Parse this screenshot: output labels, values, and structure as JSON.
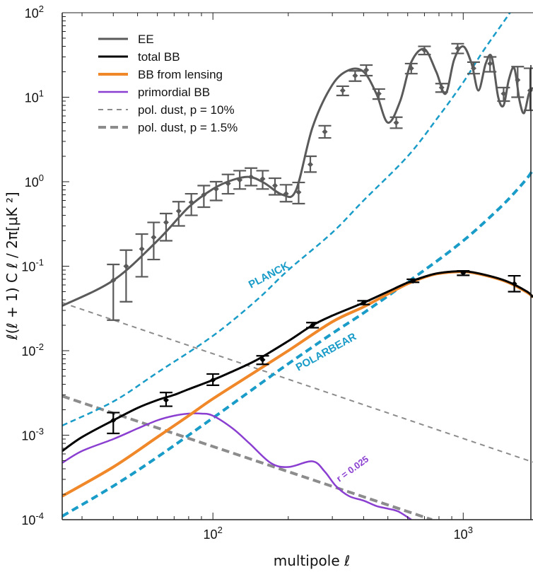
{
  "chart_data": {
    "type": "line",
    "xlabel": "multipole ℓ",
    "ylabel": "ℓ(ℓ + 1) C ℓ / 2π[μK ²]",
    "x_scale": "log",
    "y_scale": "log",
    "xlim": [
      25,
      1900
    ],
    "ylim": [
      0.0001,
      100
    ],
    "grid": false,
    "legend_position": "top-left",
    "x_ticks": [
      {
        "value": 100,
        "base": "10",
        "exp": "2"
      },
      {
        "value": 1000,
        "base": "10",
        "exp": "3"
      }
    ],
    "y_ticks": [
      {
        "value": 100,
        "base": "10",
        "exp": "2"
      },
      {
        "value": 10,
        "base": "10",
        "exp": "1"
      },
      {
        "value": 1,
        "base": "10",
        "exp": "0"
      },
      {
        "value": 0.1,
        "base": "10",
        "exp": "-1"
      },
      {
        "value": 0.01,
        "base": "10",
        "exp": "-2"
      },
      {
        "value": 0.001,
        "base": "10",
        "exp": "-3"
      },
      {
        "value": 0.0001,
        "base": "10",
        "exp": "-4"
      }
    ],
    "series": [
      {
        "name": "EE",
        "color": "#5a5a5a",
        "style": "solid",
        "width": 3,
        "x": [
          25,
          40,
          60,
          80,
          100,
          120,
          140,
          160,
          190,
          215,
          250,
          300,
          350,
          400,
          450,
          500,
          560,
          620,
          700,
          780,
          850,
          920,
          1000,
          1080,
          1150,
          1230,
          1300,
          1380,
          1450,
          1520,
          1600,
          1680,
          1750,
          1830,
          1900
        ],
        "y": [
          0.034,
          0.068,
          0.2,
          0.5,
          0.82,
          1.05,
          1.14,
          0.97,
          0.7,
          0.8,
          4.4,
          14,
          21,
          20,
          11,
          5,
          9,
          26,
          37,
          20,
          11,
          28,
          40,
          25,
          12,
          25,
          30,
          10,
          8,
          16,
          22,
          9,
          6.5,
          11,
          13
        ]
      },
      {
        "name": "total BB",
        "color": "#000000",
        "style": "solid",
        "width": 3,
        "x": [
          25,
          30,
          40,
          50,
          60,
          70,
          80,
          100,
          120,
          150,
          200,
          250,
          300,
          400,
          500,
          600,
          700,
          800,
          1000,
          1200,
          1500,
          1800,
          1900
        ],
        "y": [
          0.00065,
          0.00095,
          0.0015,
          0.0021,
          0.0026,
          0.003,
          0.0035,
          0.0045,
          0.0057,
          0.0078,
          0.013,
          0.02,
          0.026,
          0.037,
          0.05,
          0.064,
          0.075,
          0.083,
          0.087,
          0.08,
          0.066,
          0.05,
          0.043
        ]
      },
      {
        "name": "BB from lensing",
        "color": "#f0882a",
        "style": "solid",
        "width": 4,
        "x": [
          25,
          40,
          60,
          80,
          100,
          150,
          200,
          300,
          400,
          500,
          600,
          700,
          800,
          1000,
          1200,
          1500,
          1800,
          1900
        ],
        "y": [
          0.00019,
          0.00042,
          0.00095,
          0.0017,
          0.0027,
          0.0058,
          0.01,
          0.022,
          0.033,
          0.047,
          0.062,
          0.074,
          0.082,
          0.086,
          0.079,
          0.065,
          0.049,
          0.043
        ]
      },
      {
        "name": "primordial BB",
        "color": "#8a3fd1",
        "style": "solid",
        "width": 2.5,
        "x": [
          25,
          30,
          40,
          50,
          60,
          70,
          80,
          90,
          100,
          120,
          140,
          170,
          200,
          250,
          280,
          310,
          350,
          400,
          450,
          500,
          550,
          620
        ],
        "y": [
          0.00047,
          0.00065,
          0.0009,
          0.0012,
          0.0015,
          0.0017,
          0.0018,
          0.0018,
          0.0017,
          0.0012,
          0.0008,
          0.00047,
          0.00042,
          0.00049,
          0.00037,
          0.00025,
          0.00019,
          0.000168,
          0.000145,
          0.000135,
          0.000125,
          0.0001
        ]
      },
      {
        "name": "pol. dust, p = 10%",
        "color": "#8c8c8c",
        "style": "dash-thin",
        "width": 2,
        "x": [
          25,
          1900
        ],
        "y": [
          0.037,
          0.00048
        ]
      },
      {
        "name": "pol. dust, p = 1.5%",
        "color": "#8c8c8c",
        "style": "dash-thick",
        "width": 4,
        "x": [
          25,
          750
        ],
        "y": [
          0.0029,
          0.0001
        ]
      },
      {
        "name": "PLANCK",
        "color": "#1a9cc8",
        "style": "dash-blue",
        "width": 2.5,
        "x": [
          25,
          40,
          60,
          100,
          150,
          200,
          300,
          400,
          600,
          800,
          1000,
          1200,
          1500,
          1800
        ],
        "y": [
          0.0013,
          0.0025,
          0.0055,
          0.015,
          0.04,
          0.09,
          0.25,
          0.6,
          2,
          6,
          15,
          35,
          90,
          200
        ]
      },
      {
        "name": "POLARBEAR",
        "color": "#1a9cc8",
        "style": "dash-blue-thick",
        "width": 4,
        "x": [
          25,
          40,
          60,
          100,
          150,
          200,
          300,
          400,
          600,
          800,
          1000,
          1200,
          1500,
          1800,
          1900
        ],
        "y": [
          0.00011,
          0.00025,
          0.00055,
          0.0016,
          0.0038,
          0.007,
          0.016,
          0.028,
          0.065,
          0.12,
          0.2,
          0.32,
          0.6,
          1.1,
          1.4
        ]
      }
    ],
    "error_bars": [
      {
        "series": "EE",
        "color": "#5a5a5a",
        "points": [
          {
            "x": 40,
            "y": 0.068,
            "lo": 0.023,
            "hi": 0.105
          },
          {
            "x": 45,
            "y": 0.1,
            "lo": 0.038,
            "hi": 0.155
          },
          {
            "x": 52,
            "y": 0.16,
            "lo": 0.075,
            "hi": 0.24
          },
          {
            "x": 58,
            "y": 0.22,
            "lo": 0.12,
            "hi": 0.33
          },
          {
            "x": 65,
            "y": 0.33,
            "lo": 0.2,
            "hi": 0.42
          },
          {
            "x": 73,
            "y": 0.45,
            "lo": 0.3,
            "hi": 0.58
          },
          {
            "x": 82,
            "y": 0.57,
            "lo": 0.4,
            "hi": 0.72
          },
          {
            "x": 92,
            "y": 0.7,
            "lo": 0.5,
            "hi": 0.9
          },
          {
            "x": 103,
            "y": 0.82,
            "lo": 0.6,
            "hi": 1.0
          },
          {
            "x": 115,
            "y": 0.95,
            "lo": 0.72,
            "hi": 1.22
          },
          {
            "x": 128,
            "y": 1.05,
            "lo": 0.82,
            "hi": 1.35
          },
          {
            "x": 142,
            "y": 1.14,
            "lo": 0.9,
            "hi": 1.45
          },
          {
            "x": 158,
            "y": 1.08,
            "lo": 0.82,
            "hi": 1.35
          },
          {
            "x": 177,
            "y": 0.9,
            "lo": 0.7,
            "hi": 1.1
          },
          {
            "x": 196,
            "y": 0.72,
            "lo": 0.58,
            "hi": 0.92
          },
          {
            "x": 220,
            "y": 0.75,
            "lo": 0.55,
            "hi": 0.98
          },
          {
            "x": 245,
            "y": 1.6,
            "lo": 1.3,
            "hi": 2.0
          },
          {
            "x": 280,
            "y": 3.9,
            "lo": 3.3,
            "hi": 4.6
          },
          {
            "x": 330,
            "y": 12,
            "lo": 10.5,
            "hi": 13.5
          },
          {
            "x": 370,
            "y": 18,
            "lo": 15.5,
            "hi": 20.5
          },
          {
            "x": 410,
            "y": 21,
            "lo": 18,
            "hi": 24
          },
          {
            "x": 460,
            "y": 11,
            "lo": 9.5,
            "hi": 12.5
          },
          {
            "x": 540,
            "y": 5,
            "lo": 4.3,
            "hi": 5.8
          },
          {
            "x": 620,
            "y": 22,
            "lo": 19,
            "hi": 25
          },
          {
            "x": 700,
            "y": 36,
            "lo": 32,
            "hi": 40
          },
          {
            "x": 820,
            "y": 13,
            "lo": 11.5,
            "hi": 14.5
          },
          {
            "x": 950,
            "y": 38,
            "lo": 33,
            "hi": 43
          },
          {
            "x": 1100,
            "y": 22,
            "lo": 19,
            "hi": 26
          },
          {
            "x": 1280,
            "y": 25,
            "lo": 20,
            "hi": 30
          },
          {
            "x": 1450,
            "y": 11,
            "lo": 9,
            "hi": 13
          },
          {
            "x": 1650,
            "y": 16,
            "lo": 10,
            "hi": 23
          },
          {
            "x": 1850,
            "y": 12,
            "lo": 7,
            "hi": 22
          }
        ]
      },
      {
        "series": "total BB",
        "color": "#000000",
        "points": [
          {
            "x": 40,
            "y": 0.0015,
            "lo": 0.00105,
            "hi": 0.00185
          },
          {
            "x": 65,
            "y": 0.0026,
            "lo": 0.0022,
            "hi": 0.0032
          },
          {
            "x": 100,
            "y": 0.0045,
            "lo": 0.0039,
            "hi": 0.0053
          },
          {
            "x": 158,
            "y": 0.0078,
            "lo": 0.0069,
            "hi": 0.0087
          },
          {
            "x": 250,
            "y": 0.02,
            "lo": 0.0187,
            "hi": 0.0215
          },
          {
            "x": 400,
            "y": 0.037,
            "lo": 0.0352,
            "hi": 0.039
          },
          {
            "x": 630,
            "y": 0.067,
            "lo": 0.0645,
            "hi": 0.07
          },
          {
            "x": 1000,
            "y": 0.083,
            "lo": 0.078,
            "hi": 0.088
          },
          {
            "x": 1600,
            "y": 0.062,
            "lo": 0.05,
            "hi": 0.077
          }
        ]
      }
    ],
    "annotations": [
      {
        "text": "PLANCK",
        "color": "#1a9cc8"
      },
      {
        "text": "POLARBEAR",
        "color": "#1a9cc8"
      },
      {
        "text": "r = 0.025",
        "color": "#8a3fd1"
      }
    ]
  }
}
